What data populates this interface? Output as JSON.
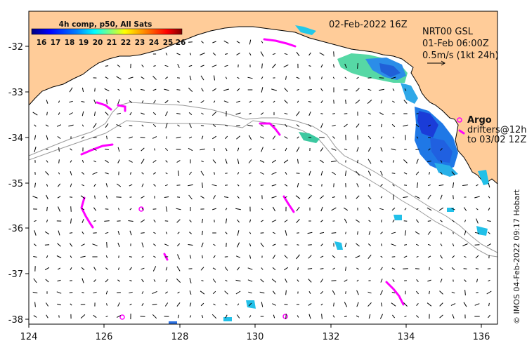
{
  "map": {
    "timestamp": "02-Feb-2022 16Z",
    "colorbar": {
      "title": "4h comp, p50, All Sats",
      "ticks": [
        "16",
        "17",
        "18",
        "19",
        "20",
        "21",
        "22",
        "23",
        "24",
        "25",
        "26"
      ],
      "colors": [
        "#00007f",
        "#0000ff",
        "#0080ff",
        "#00ffff",
        "#80ff80",
        "#ffff00",
        "#ff8000",
        "#ff0000",
        "#7f0000"
      ]
    },
    "current_legend": {
      "line1": "NRT00 GSL",
      "line2": "01-Feb 06:00Z",
      "line3": "0.5m/s (1kt 24h)"
    },
    "argo_legend": {
      "label": "Argo",
      "drifters_line1": "drifters@12h",
      "drifters_line2": "to 03/02 12Z"
    },
    "credit": "© IMOS 04-Feb-2022 09:17 Hobart",
    "x_axis": {
      "range": [
        124,
        136.6
      ],
      "ticks": [
        "124",
        "126",
        "128",
        "130",
        "132",
        "134",
        "136"
      ]
    },
    "y_axis": {
      "range": [
        -38.1,
        -31.3
      ],
      "ticks": [
        "-32",
        "-33",
        "-34",
        "-35",
        "-36",
        "-37",
        "-38"
      ]
    },
    "colors": {
      "land": "#ffcc99",
      "ocean": "#ffffff",
      "drifter": "#ff00ff",
      "isobath": "#999999"
    }
  }
}
